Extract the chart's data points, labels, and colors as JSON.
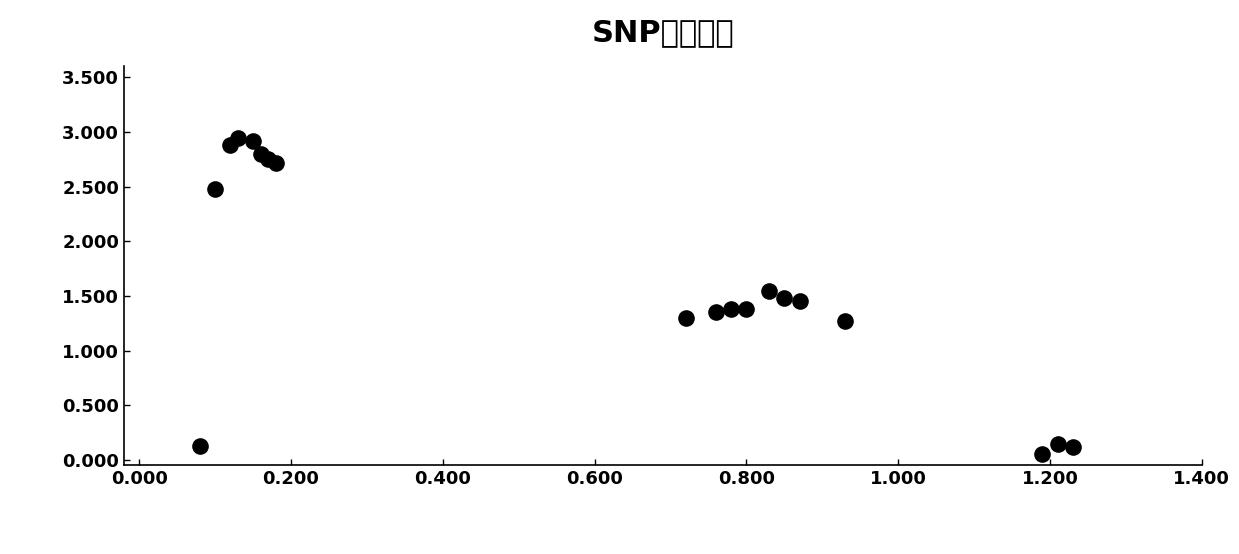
{
  "title": "SNP分型结果",
  "x_data": [
    0.08,
    0.1,
    0.12,
    0.13,
    0.15,
    0.16,
    0.17,
    0.18,
    0.72,
    0.76,
    0.78,
    0.8,
    0.83,
    0.85,
    0.87,
    0.93,
    1.19,
    1.21,
    1.23
  ],
  "y_data": [
    0.13,
    2.48,
    2.88,
    2.95,
    2.92,
    2.8,
    2.75,
    2.72,
    1.3,
    1.35,
    1.38,
    1.38,
    1.55,
    1.48,
    1.45,
    1.27,
    0.05,
    0.15,
    0.12
  ],
  "xlim": [
    -0.02,
    1.4
  ],
  "ylim": [
    -0.05,
    3.6
  ],
  "xticks": [
    0.0,
    0.2,
    0.4,
    0.6,
    0.8,
    1.0,
    1.2,
    1.4
  ],
  "yticks": [
    0.0,
    0.5,
    1.0,
    1.5,
    2.0,
    2.5,
    3.0,
    3.5
  ],
  "xtick_labels": [
    "0.000",
    "0.200",
    "0.400",
    "0.600",
    "0.800",
    "1.000",
    "1.200",
    "1.400"
  ],
  "ytick_labels": [
    "0.000",
    "0.500",
    "1.000",
    "1.500",
    "2.000",
    "2.500",
    "3.000",
    "3.500"
  ],
  "marker_color": "#000000",
  "marker_size": 120,
  "bg_color": "#ffffff",
  "title_fontsize": 22,
  "tick_fontsize": 13
}
